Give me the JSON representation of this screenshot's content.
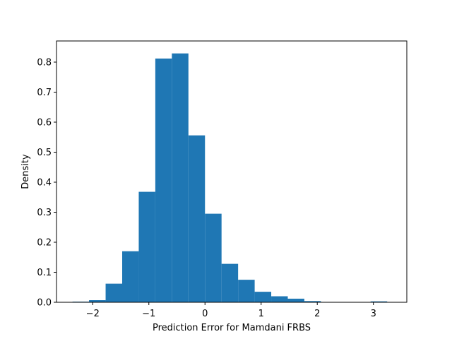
{
  "chart_data": {
    "type": "bar",
    "subtype": "histogram",
    "xlabel": "Prediction Error for Mamdani FRBS",
    "ylabel": "Density",
    "xlim": [
      -2.645,
      3.595
    ],
    "ylim": [
      0,
      0.8705
    ],
    "grid": false,
    "bar_color": "#1f77b4",
    "bins": [
      {
        "x0": -2.36,
        "x1": -2.065,
        "density": 0.002
      },
      {
        "x0": -2.065,
        "x1": -1.77,
        "density": 0.007
      },
      {
        "x0": -1.77,
        "x1": -1.475,
        "density": 0.062
      },
      {
        "x0": -1.475,
        "x1": -1.18,
        "density": 0.17
      },
      {
        "x0": -1.18,
        "x1": -0.885,
        "density": 0.368
      },
      {
        "x0": -0.885,
        "x1": -0.59,
        "density": 0.812
      },
      {
        "x0": -0.59,
        "x1": -0.295,
        "density": 0.829
      },
      {
        "x0": -0.295,
        "x1": 0.0,
        "density": 0.556
      },
      {
        "x0": 0.0,
        "x1": 0.295,
        "density": 0.295
      },
      {
        "x0": 0.295,
        "x1": 0.59,
        "density": 0.128
      },
      {
        "x0": 0.59,
        "x1": 0.885,
        "density": 0.075
      },
      {
        "x0": 0.885,
        "x1": 1.18,
        "density": 0.035
      },
      {
        "x0": 1.18,
        "x1": 1.475,
        "density": 0.02
      },
      {
        "x0": 1.475,
        "x1": 1.77,
        "density": 0.012
      },
      {
        "x0": 1.77,
        "x1": 2.065,
        "density": 0.004
      },
      {
        "x0": 2.065,
        "x1": 2.36,
        "density": 0.0
      },
      {
        "x0": 2.36,
        "x1": 2.655,
        "density": 0.0
      },
      {
        "x0": 2.655,
        "x1": 2.95,
        "density": 0.0
      },
      {
        "x0": 2.95,
        "x1": 3.245,
        "density": 0.003
      },
      {
        "x0": 3.245,
        "x1": 3.31,
        "density": 0.0
      }
    ],
    "x_ticks": [
      {
        "value": -2,
        "label": "−2"
      },
      {
        "value": -1,
        "label": "−1"
      },
      {
        "value": 0,
        "label": "0"
      },
      {
        "value": 1,
        "label": "1"
      },
      {
        "value": 2,
        "label": "2"
      },
      {
        "value": 3,
        "label": "3"
      }
    ],
    "y_ticks": [
      {
        "value": 0.0,
        "label": "0.0"
      },
      {
        "value": 0.1,
        "label": "0.1"
      },
      {
        "value": 0.2,
        "label": "0.2"
      },
      {
        "value": 0.3,
        "label": "0.3"
      },
      {
        "value": 0.4,
        "label": "0.4"
      },
      {
        "value": 0.5,
        "label": "0.5"
      },
      {
        "value": 0.6,
        "label": "0.6"
      },
      {
        "value": 0.7,
        "label": "0.7"
      },
      {
        "value": 0.8,
        "label": "0.8"
      }
    ]
  }
}
